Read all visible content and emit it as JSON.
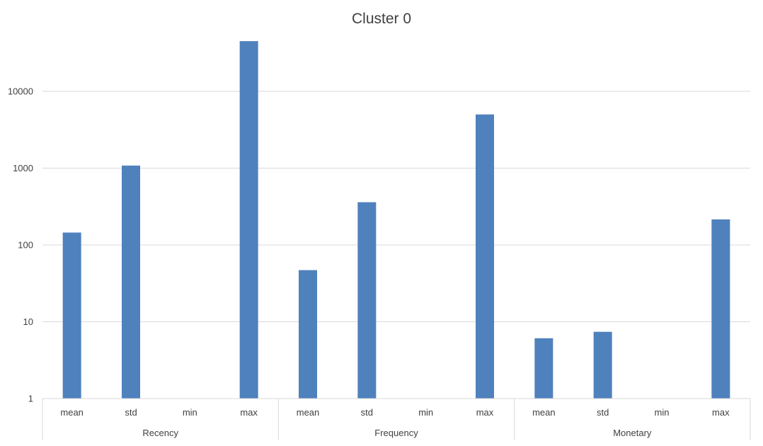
{
  "chart_data": {
    "type": "bar",
    "title": "Cluster 0",
    "yscale": "log",
    "ylim": [
      1,
      50000
    ],
    "yticks": [
      "1",
      "10",
      "100",
      "1000",
      "10000"
    ],
    "grid": true,
    "bar_color": "#4F81BD",
    "groups": [
      {
        "label": "Recency",
        "categories": [
          "mean",
          "std",
          "min",
          "max"
        ],
        "values": [
          145,
          1080,
          1,
          45000
        ]
      },
      {
        "label": "Frequency",
        "categories": [
          "mean",
          "std",
          "min",
          "max"
        ],
        "values": [
          47,
          360,
          1,
          5000
        ]
      },
      {
        "label": "Monetary",
        "categories": [
          "mean",
          "std",
          "min",
          "max"
        ],
        "values": [
          6.1,
          7.4,
          1,
          215
        ]
      }
    ]
  }
}
